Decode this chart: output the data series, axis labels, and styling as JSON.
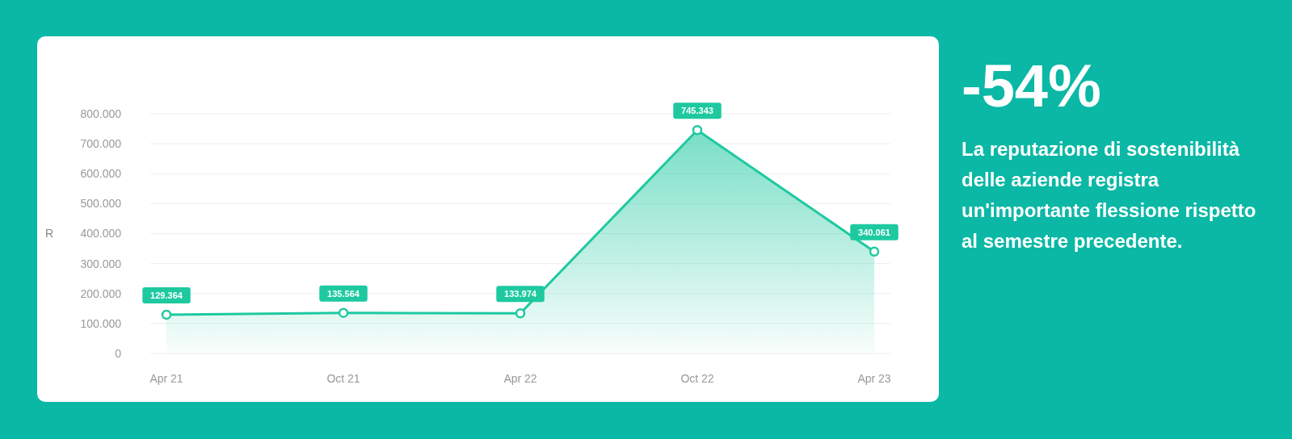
{
  "chart_data": {
    "type": "area",
    "ylabel": "R",
    "categories": [
      "Apr 21",
      "Oct 21",
      "Apr 22",
      "Oct 22",
      "Apr 23"
    ],
    "series": [
      {
        "color": "#1ec9a0",
        "values": [
          129364,
          135564,
          133974,
          745343,
          340061
        ],
        "value_labels": [
          "129.364",
          "135.564",
          "133.974",
          "745.343",
          "340.061"
        ]
      }
    ],
    "ylim": [
      0,
      800000
    ],
    "yticks": [
      {
        "value": 0,
        "label": "0"
      },
      {
        "value": 100000,
        "label": "100.000"
      },
      {
        "value": 200000,
        "label": "200.000"
      },
      {
        "value": 300000,
        "label": "300.000"
      },
      {
        "value": 400000,
        "label": "400.000"
      },
      {
        "value": 500000,
        "label": "500.000"
      },
      {
        "value": 600000,
        "label": "600.000"
      },
      {
        "value": 700000,
        "label": "700.000"
      },
      {
        "value": 800000,
        "label": "800.000"
      }
    ],
    "grid": "y",
    "marker": "circle",
    "line_style": "solid",
    "annotations": [
      "-54%",
      "La reputazione di sostenibilità delle aziende registra un'importante flessione rispetto al semestre precedente."
    ]
  }
}
